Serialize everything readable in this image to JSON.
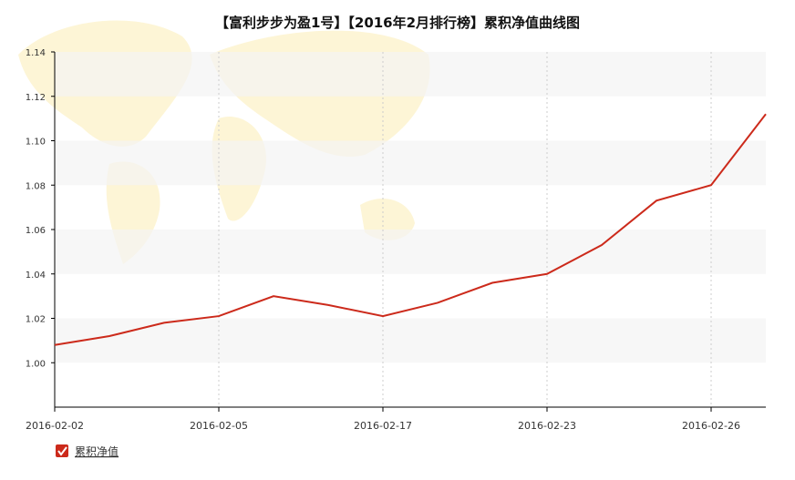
{
  "chart_data": {
    "type": "line",
    "title": "【富利步步为盈1号】【2016年2月排行榜】累积净值曲线图",
    "categories": [
      "2016-02-02",
      null,
      null,
      "2016-02-05",
      null,
      null,
      "2016-02-17",
      null,
      null,
      "2016-02-23",
      null,
      null,
      "2016-02-26",
      null
    ],
    "series": [
      {
        "name": "累积净值",
        "color": "#cc2a1b",
        "values": [
          1.008,
          1.012,
          1.018,
          1.021,
          1.03,
          1.026,
          1.021,
          1.027,
          1.036,
          1.04,
          1.053,
          1.073,
          1.08,
          1.112
        ]
      }
    ],
    "ylim": [
      0.98,
      1.14
    ],
    "yticks": [
      {
        "value": 1.0,
        "label": "1.00"
      },
      {
        "value": 1.02,
        "label": "1.02"
      },
      {
        "value": 1.04,
        "label": "1.04"
      },
      {
        "value": 1.06,
        "label": "1.06"
      },
      {
        "value": 1.08,
        "label": "1.08"
      },
      {
        "value": 1.1,
        "label": "1.10"
      },
      {
        "value": 1.12,
        "label": "1.12"
      },
      {
        "value": 1.14,
        "label": "1.14"
      }
    ],
    "grid": true,
    "legend": "bottom-left"
  }
}
